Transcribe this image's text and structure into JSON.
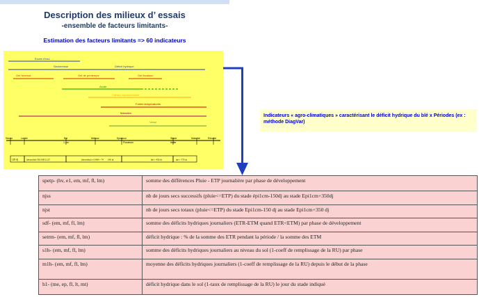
{
  "header": {
    "title": "Description des milieux d’ essais",
    "subtitle": "-ensemble de facteurs limitants-",
    "estimation": "Estimation des facteurs limitants => 60 indicateurs"
  },
  "timeline": {
    "factors": [
      {
        "label": "Excès d'eau",
        "color": "#1f3fbf"
      },
      {
        "label": "Sécheresse",
        "color": "#1f3fbf"
      },
      {
        "label": "Déficit hydrique",
        "color": "#1f3fbf"
      },
      {
        "label": "Gel hivernal",
        "color": "#cc3300"
      },
      {
        "label": "Gel de printemps",
        "color": "#cc3300"
      },
      {
        "label": "Gel floraison",
        "color": "#cc3300"
      },
      {
        "label": "Azote",
        "color": "#009900"
      },
      {
        "label": "Faibles rayonnements",
        "color": "#ffaa00"
      },
      {
        "label": "Fortes températures",
        "color": "#cc0000"
      },
      {
        "label": "Maladies",
        "color": "#990066"
      },
      {
        "label": "Verse",
        "color": "#669933"
      }
    ],
    "stages": [
      "Semis",
      "Levée",
      "Epi",
      "1 cm",
      "Méiose",
      "Epiaison",
      "Floraison",
      "Stade",
      "limite",
      "Maturité",
      "Récolte"
    ],
    "periods": [
      "120 dj",
      "[dmpo(dpi)-316.00]*1.127",
      "(dmpo(dpi) x 0.864 + 74",
      "145 dj",
      "dpi + 430 dj",
      "dpi + 775 dj"
    ]
  },
  "note": {
    "text": "Indicateurs « agro-climatiques » caractérisant le déficit hydrique du blé x Périodes (ex : méthode DiagVar)"
  },
  "indicators": [
    {
      "code": "spetp- (hv, e1, em, mf, fl, lm)",
      "desc": "somme des différences Pluie - ETP journalière par phase de développement"
    },
    {
      "code": "njss",
      "desc": "nb de jours secs successifs (pluie<=ETP) du stade épi1cm-150dj au stade Epi1cm+350dj"
    },
    {
      "code": "njst",
      "desc": "nb de jours secs totaux (pluie<=ETP) du stade Epi1cm-150 dj au stade Epi1cm+350 dj"
    },
    {
      "code": "sdf- (em, mf, fl, lm)",
      "desc": "somme des déficits hydriques journaliers (ETR-ETM quand ETR<ETM) par phase de développement"
    },
    {
      "code": "setrm- (em, mf, fl, lm)",
      "desc": "déficit hydrique : % de la somme des ETR pendant la période / la somme des ETM"
    },
    {
      "code": "s1h- (em, mf, fl, lm)",
      "desc": "somme des déficits hydriques journaliers au niveau du sol (1-coeff de remplissage de la RU) par phase"
    },
    {
      "code": "m1h- (em, mf, fl, lm)",
      "desc": "moyenne des déficits hydriques journaliers (1-coeff de remplissage de la RU) depuis le début de la phase"
    },
    {
      "code": "h1- (me, ep, fl, lt, mt)",
      "desc": "déficit hydrique dans le sol (1-taux de remplissage de la RU) le jour du stade indiqué"
    }
  ]
}
